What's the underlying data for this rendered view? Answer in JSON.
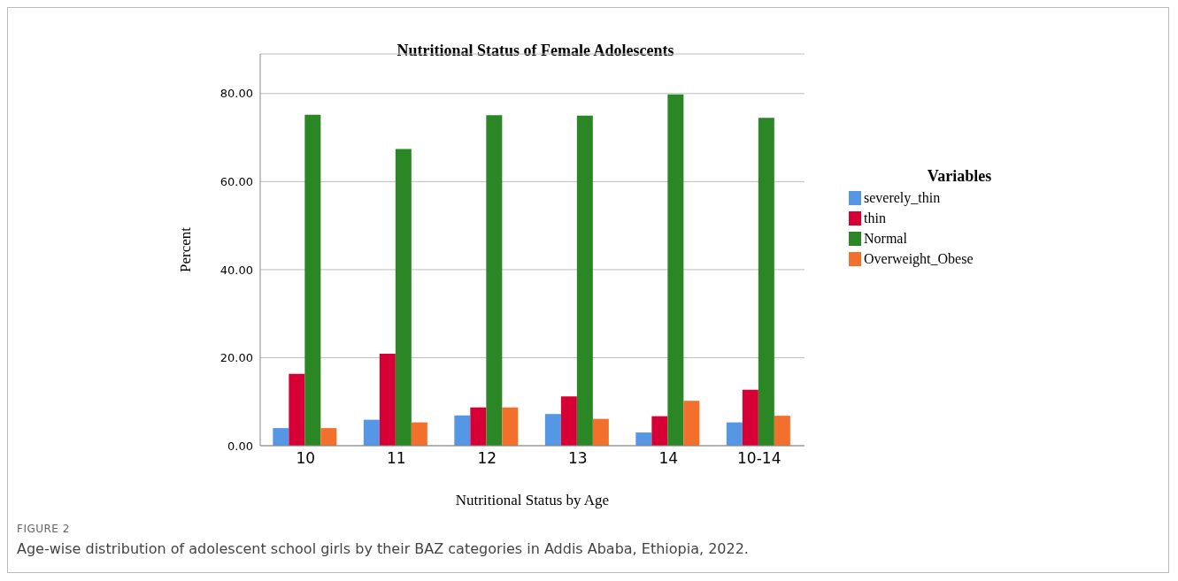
{
  "chart_data": {
    "type": "bar",
    "title": "Nutritional Status of Female Adolescents",
    "xlabel": "Nutritional Status by Age",
    "ylabel": "Percent",
    "legend_title": "Variables",
    "categories": [
      "10",
      "11",
      "12",
      "13",
      "14",
      "10-14"
    ],
    "series": [
      {
        "name": "severely_thin",
        "color": "#5597e5",
        "values": [
          4.0,
          5.9,
          6.9,
          7.2,
          3.0,
          5.3
        ]
      },
      {
        "name": "thin",
        "color": "#d60036",
        "values": [
          16.3,
          20.9,
          8.7,
          11.2,
          6.7,
          12.7
        ]
      },
      {
        "name": "Normal",
        "color": "#2b8626",
        "values": [
          75.2,
          67.4,
          75.1,
          75.0,
          79.8,
          74.5
        ]
      },
      {
        "name": "Overweight_Obese",
        "color": "#f26f2c",
        "values": [
          4.0,
          5.3,
          8.7,
          6.1,
          10.2,
          6.8
        ]
      }
    ],
    "ylim": [
      0,
      89
    ],
    "yticks": [
      {
        "value": 0,
        "label": "0.00"
      },
      {
        "value": 20,
        "label": "20.00"
      },
      {
        "value": 40,
        "label": "40.00"
      },
      {
        "value": 60,
        "label": "60.00"
      },
      {
        "value": 80,
        "label": "80.00"
      }
    ],
    "grid": "y",
    "legend": "right",
    "annotations": [
      "FIGURE 2",
      "Age-wise distribution of adolescent school girls by their BAZ categories in Addis Ababa, Ethiopia, 2022."
    ]
  }
}
